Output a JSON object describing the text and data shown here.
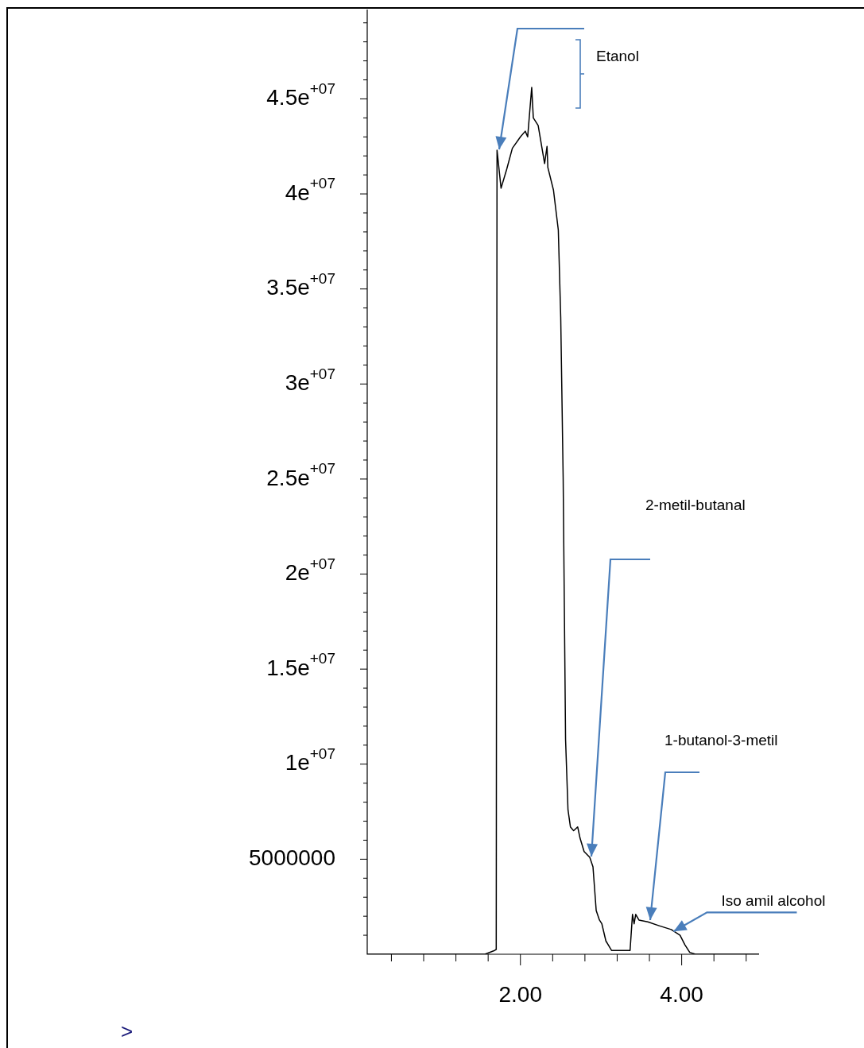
{
  "chart_data": {
    "type": "line",
    "x": [
      0.1,
      1.56,
      1.68,
      1.7,
      1.71,
      1.76,
      1.83,
      1.9,
      2.0,
      2.06,
      2.09,
      2.14,
      2.16,
      2.22,
      2.3,
      2.33,
      2.34,
      2.41,
      2.47,
      2.5,
      2.53,
      2.56,
      2.59,
      2.62,
      2.66,
      2.71,
      2.74,
      2.79,
      2.86,
      2.9,
      2.94,
      2.98,
      3.01,
      3.06,
      3.13,
      3.36,
      3.39,
      3.41,
      3.43,
      3.47,
      3.58,
      3.72,
      3.87,
      3.98,
      4.04,
      4.1,
      4.17,
      4.96
    ],
    "series": [
      {
        "color": "#000000",
        "values": [
          0,
          0,
          200000,
          250000,
          42300000,
          40300000,
          41300000,
          42400000,
          43000000,
          43300000,
          43000000,
          45600000,
          44000000,
          43600000,
          41600000,
          42500000,
          41400000,
          40200000,
          38100000,
          33500000,
          25100000,
          11300000,
          7600000,
          6700000,
          6500000,
          6700000,
          6100000,
          5400000,
          5100000,
          4600000,
          2300000,
          1800000,
          1600000,
          700000,
          200000,
          200000,
          2100000,
          1600000,
          2100000,
          1800000,
          1700000,
          1500000,
          1300000,
          1000000,
          500000,
          100000,
          0,
          0
        ]
      }
    ],
    "xlim": [
      0.1,
      4.96
    ],
    "xticks": [
      {
        "value": 0.4,
        "label": null
      },
      {
        "value": 0.8,
        "label": null
      },
      {
        "value": 1.2,
        "label": null
      },
      {
        "value": 1.6,
        "label": null
      },
      {
        "value": 2,
        "label": "2.00"
      },
      {
        "value": 2.4,
        "label": null
      },
      {
        "value": 2.8,
        "label": null
      },
      {
        "value": 3.2,
        "label": null
      },
      {
        "value": 3.6,
        "label": null
      },
      {
        "value": 4,
        "label": "4.00"
      },
      {
        "value": 4.4,
        "label": null
      },
      {
        "value": 4.8,
        "label": null
      }
    ],
    "ylim": [
      0,
      49700000
    ],
    "yticks": [
      {
        "value": 1000000,
        "label": null
      },
      {
        "value": 2000000,
        "label": null
      },
      {
        "value": 3000000,
        "label": null
      },
      {
        "value": 4000000,
        "label": null
      },
      5000000,
      {
        "value": 6000000,
        "label": null
      },
      {
        "value": 7000000,
        "label": null
      },
      {
        "value": 8000000,
        "label": null
      },
      {
        "value": 9000000,
        "label": null
      },
      {
        "value": 10000000,
        "label": "1e+07"
      },
      {
        "value": 11000000,
        "label": null
      },
      {
        "value": 12000000,
        "label": null
      },
      {
        "value": 13000000,
        "label": null
      },
      {
        "value": 14000000,
        "label": null
      },
      {
        "value": 15000000,
        "label": "1.5e+07"
      },
      {
        "value": 16000000,
        "label": null
      },
      {
        "value": 17000000,
        "label": null
      },
      {
        "value": 18000000,
        "label": null
      },
      {
        "value": 19000000,
        "label": null
      },
      {
        "value": 20000000,
        "label": "2e+07"
      },
      {
        "value": 21000000,
        "label": null
      },
      {
        "value": 22000000,
        "label": null
      },
      {
        "value": 23000000,
        "label": null
      },
      {
        "value": 24000000,
        "label": null
      },
      {
        "value": 25000000,
        "label": "2.5e+07"
      },
      {
        "value": 26000000,
        "label": null
      },
      {
        "value": 27000000,
        "label": null
      },
      {
        "value": 28000000,
        "label": null
      },
      {
        "value": 29000000,
        "label": null
      },
      {
        "value": 30000000,
        "label": "3e+07"
      },
      {
        "value": 31000000,
        "label": null
      },
      {
        "value": 32000000,
        "label": null
      },
      {
        "value": 33000000,
        "label": null
      },
      {
        "value": 34000000,
        "label": null
      },
      {
        "value": 35000000,
        "label": "3.5e+07"
      },
      {
        "value": 36000000,
        "label": null
      },
      {
        "value": 37000000,
        "label": null
      },
      {
        "value": 38000000,
        "label": null
      },
      {
        "value": 39000000,
        "label": null
      },
      {
        "value": 40000000,
        "label": "4e+07"
      },
      {
        "value": 41000000,
        "label": null
      },
      {
        "value": 42000000,
        "label": null
      },
      {
        "value": 43000000,
        "label": null
      },
      {
        "value": 44000000,
        "label": null
      },
      {
        "value": 45000000,
        "label": "4.5e+07"
      },
      {
        "value": 46000000,
        "label": null
      },
      {
        "value": 47000000,
        "label": null
      },
      {
        "value": 48000000,
        "label": null
      },
      {
        "value": 49000000,
        "label": null
      }
    ],
    "annotations": [
      "Etanol",
      "2-metil-butanal",
      "1-butanol-3-metil",
      {
        "text": "Iso amil alcohol",
        "x": 3.9,
        "y": 1200000
      },
      ">"
    ],
    "grid": false,
    "legend": false,
    "marker": "none",
    "line_style": "solid"
  }
}
